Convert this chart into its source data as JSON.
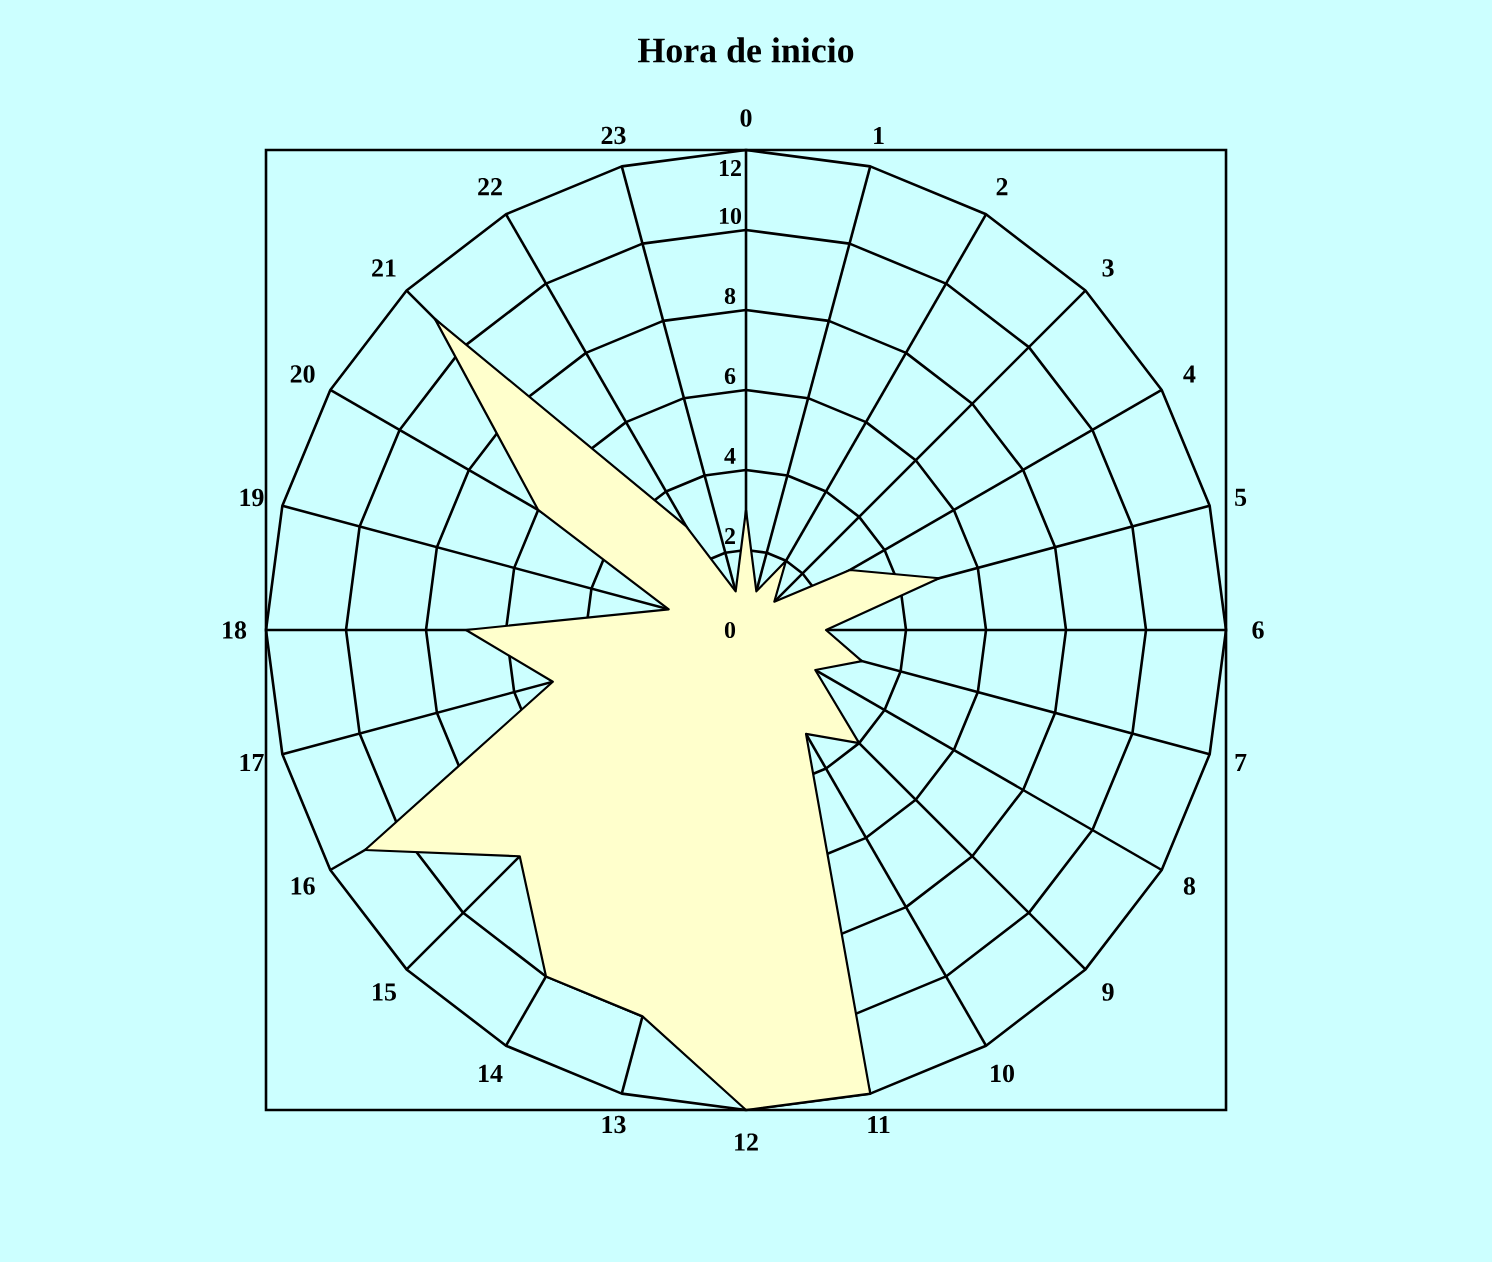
{
  "chart_data": {
    "type": "radar",
    "title": "Hora de inicio",
    "categories": [
      "0",
      "1",
      "2",
      "3",
      "4",
      "5",
      "6",
      "7",
      "8",
      "9",
      "10",
      "11",
      "12",
      "13",
      "14",
      "15",
      "16",
      "17",
      "18",
      "19",
      "20",
      "21",
      "22",
      "23"
    ],
    "series": [
      {
        "color": "#ffffcc",
        "values": [
          3,
          1,
          2,
          1,
          3,
          5,
          2,
          3,
          2,
          4,
          3,
          12,
          12,
          10,
          10,
          8,
          11,
          5,
          7,
          2,
          6,
          11,
          3,
          1
        ]
      }
    ],
    "ylim": [
      0,
      12
    ],
    "yticks": [
      0,
      2,
      4,
      6,
      8,
      10,
      12
    ],
    "grid": true
  }
}
